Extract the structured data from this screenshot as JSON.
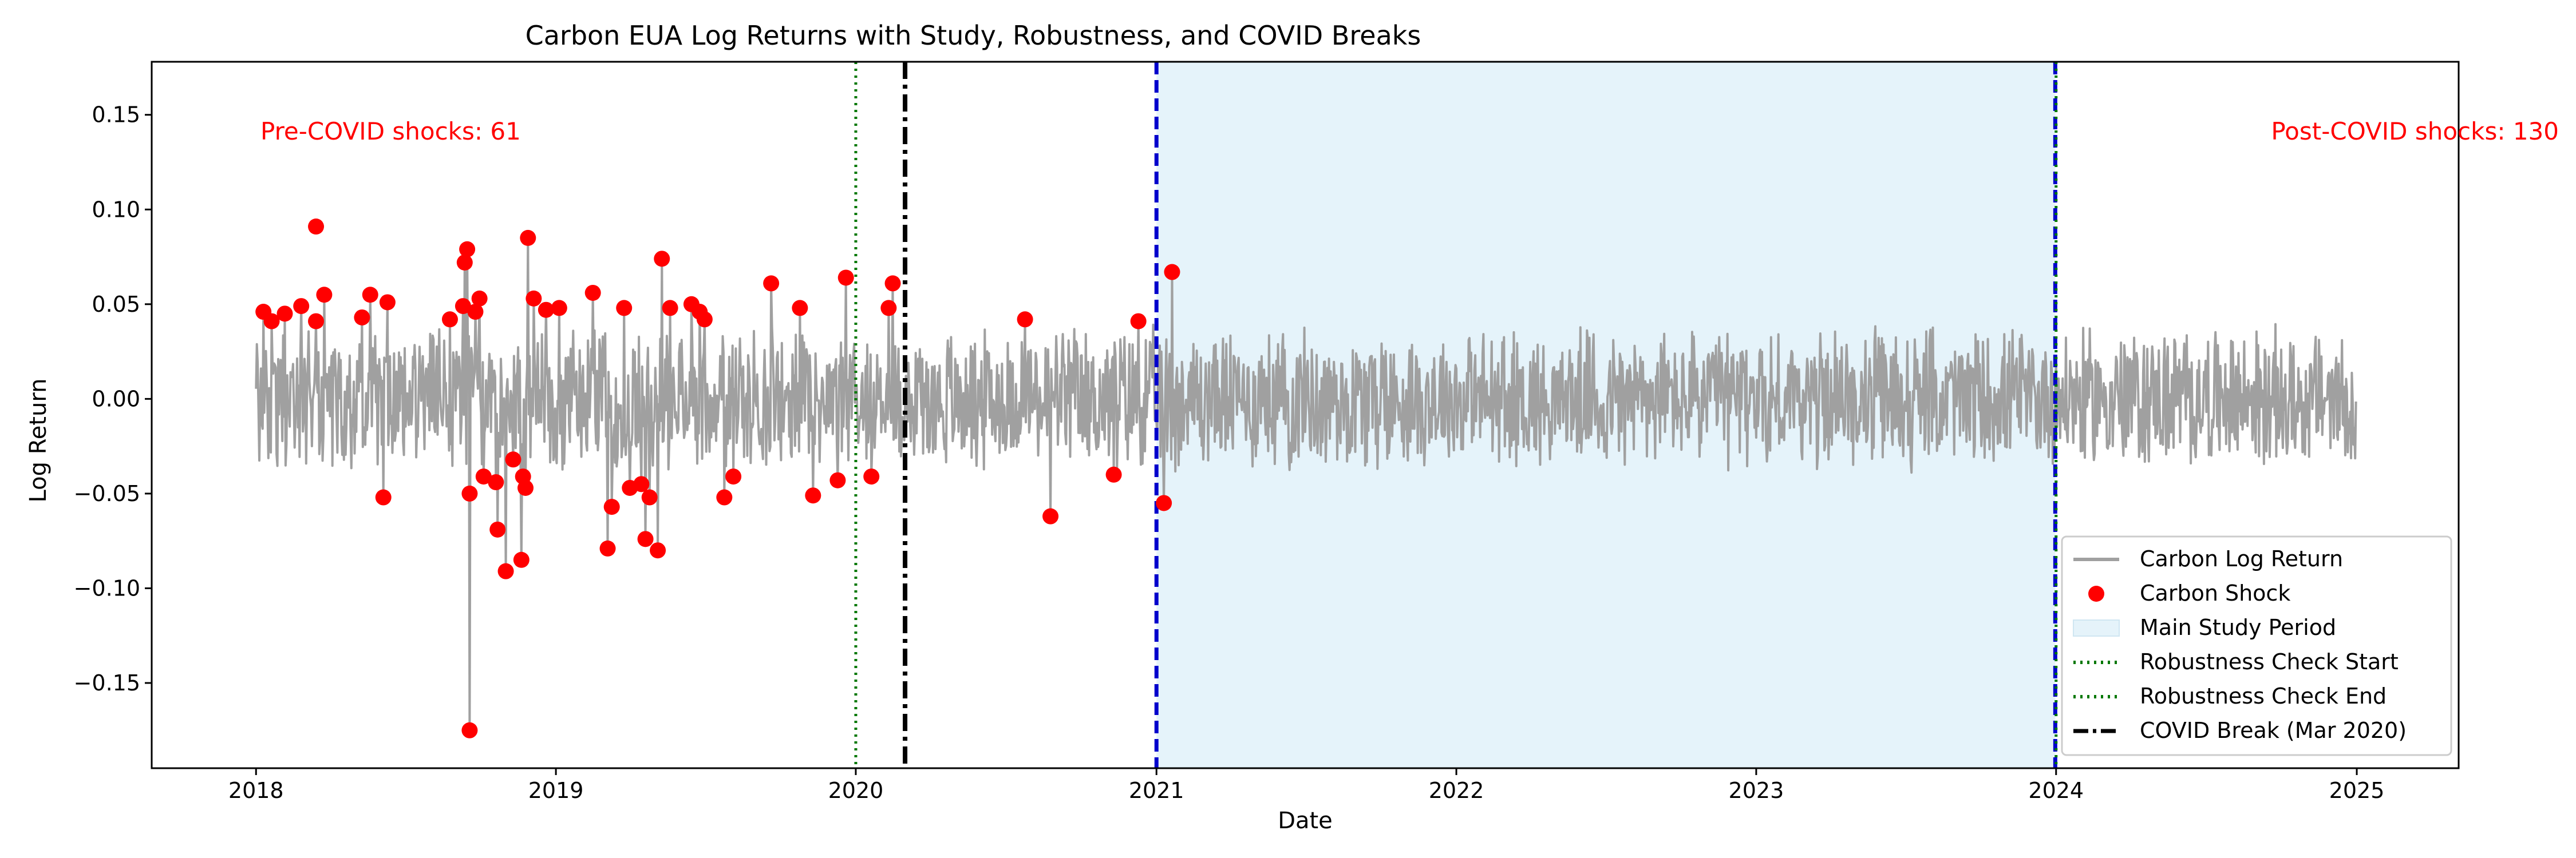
{
  "chart_data": {
    "type": "line",
    "title": "Carbon EUA Log Returns with Study, Robustness, and COVID Breaks",
    "xlabel": "Date",
    "ylabel": "Log Return",
    "xlim": [
      "2017-08-27",
      "2025-05-05"
    ],
    "ylim": [
      -0.195,
      0.178
    ],
    "x_ticks": [
      "2018",
      "2019",
      "2020",
      "2021",
      "2022",
      "2023",
      "2024",
      "2025"
    ],
    "y_ticks": [
      -0.15,
      -0.1,
      -0.05,
      0.0,
      0.05,
      0.1,
      0.15
    ],
    "y_tick_labels": [
      "−0.15",
      "−0.10",
      "−0.05",
      "0.00",
      "0.05",
      "0.10",
      "0.15"
    ],
    "grid": false,
    "legend_position": "lower-right",
    "colors": {
      "returns": "#a0a0a0",
      "shocks": "#ff0000",
      "study_fill": "#e5f3fa",
      "study_border": "#0000cc",
      "robustness": "#007700",
      "covid": "#000000",
      "annotation": "#ff0000"
    },
    "series": [
      {
        "name": "Carbon Log Return",
        "kind": "line",
        "date_range": [
          "2018-01-01",
          "2024-12-31"
        ],
        "note_values": "daily returns fluctuating mostly within ±0.04, with spikes at shock dates"
      },
      {
        "name": "Carbon Shock",
        "kind": "scatter",
        "points": [
          [
            "2018-01-10",
            0.046
          ],
          [
            "2018-01-20",
            0.041
          ],
          [
            "2018-02-05",
            0.045
          ],
          [
            "2018-02-25",
            0.049
          ],
          [
            "2018-03-15",
            0.091
          ],
          [
            "2018-03-15",
            0.041
          ],
          [
            "2018-03-25",
            0.055
          ],
          [
            "2018-05-10",
            0.043
          ],
          [
            "2018-05-20",
            0.055
          ],
          [
            "2018-06-05",
            -0.052
          ],
          [
            "2018-06-10",
            0.051
          ],
          [
            "2018-08-25",
            0.042
          ],
          [
            "2018-09-10",
            0.049
          ],
          [
            "2018-09-12",
            0.072
          ],
          [
            "2018-09-15",
            0.079
          ],
          [
            "2018-09-18",
            -0.05
          ],
          [
            "2018-09-18",
            -0.175
          ],
          [
            "2018-09-25",
            0.046
          ],
          [
            "2018-09-30",
            0.053
          ],
          [
            "2018-10-05",
            -0.041
          ],
          [
            "2018-10-20",
            -0.044
          ],
          [
            "2018-10-22",
            -0.069
          ],
          [
            "2018-11-01",
            -0.091
          ],
          [
            "2018-11-10",
            -0.032
          ],
          [
            "2018-11-20",
            -0.085
          ],
          [
            "2018-11-22",
            -0.041
          ],
          [
            "2018-11-25",
            -0.047
          ],
          [
            "2018-11-28",
            0.085
          ],
          [
            "2018-12-05",
            0.053
          ],
          [
            "2018-12-20",
            0.047
          ],
          [
            "2019-01-05",
            0.048
          ],
          [
            "2019-02-15",
            0.056
          ],
          [
            "2019-03-05",
            -0.079
          ],
          [
            "2019-03-10",
            -0.057
          ],
          [
            "2019-03-25",
            0.048
          ],
          [
            "2019-04-01",
            -0.047
          ],
          [
            "2019-04-15",
            -0.045
          ],
          [
            "2019-04-20",
            -0.074
          ],
          [
            "2019-04-25",
            -0.052
          ],
          [
            "2019-05-05",
            -0.08
          ],
          [
            "2019-05-10",
            0.074
          ],
          [
            "2019-05-20",
            0.048
          ],
          [
            "2019-06-15",
            0.05
          ],
          [
            "2019-06-25",
            0.046
          ],
          [
            "2019-07-01",
            0.042
          ],
          [
            "2019-07-25",
            -0.052
          ],
          [
            "2019-08-05",
            -0.041
          ],
          [
            "2019-09-20",
            0.061
          ],
          [
            "2019-10-25",
            0.048
          ],
          [
            "2019-11-10",
            -0.051
          ],
          [
            "2019-12-10",
            -0.043
          ],
          [
            "2019-12-20",
            0.064
          ],
          [
            "2020-01-20",
            -0.041
          ],
          [
            "2020-02-10",
            0.048
          ],
          [
            "2020-02-15",
            0.061
          ],
          [
            "2020-07-25",
            0.042
          ],
          [
            "2020-08-25",
            -0.062
          ],
          [
            "2020-11-10",
            -0.04
          ],
          [
            "2020-12-10",
            0.041
          ],
          [
            "2021-01-10",
            -0.055
          ],
          [
            "2021-01-20",
            0.067
          ]
        ],
        "note_points": "markers shown; full list abbreviated — total counts given by annotations"
      },
      {
        "name": "Main Study Period",
        "kind": "span",
        "start": "2021-01-01",
        "end": "2023-12-31"
      },
      {
        "name": "Robustness Check Start",
        "kind": "vline",
        "x": "2020-01-01"
      },
      {
        "name": "Robustness Check End",
        "kind": "vline",
        "x": "2024-01-01"
      },
      {
        "name": "COVID Break (Mar 2020)",
        "kind": "vline",
        "x": "2020-03-01"
      }
    ],
    "annotations": [
      {
        "text": "Pre-COVID shocks: 61",
        "x": "2018-01-01",
        "y": 0.14
      },
      {
        "text": "Post-COVID shocks: 130",
        "x": "2024-12-31",
        "y": 0.14
      }
    ]
  }
}
